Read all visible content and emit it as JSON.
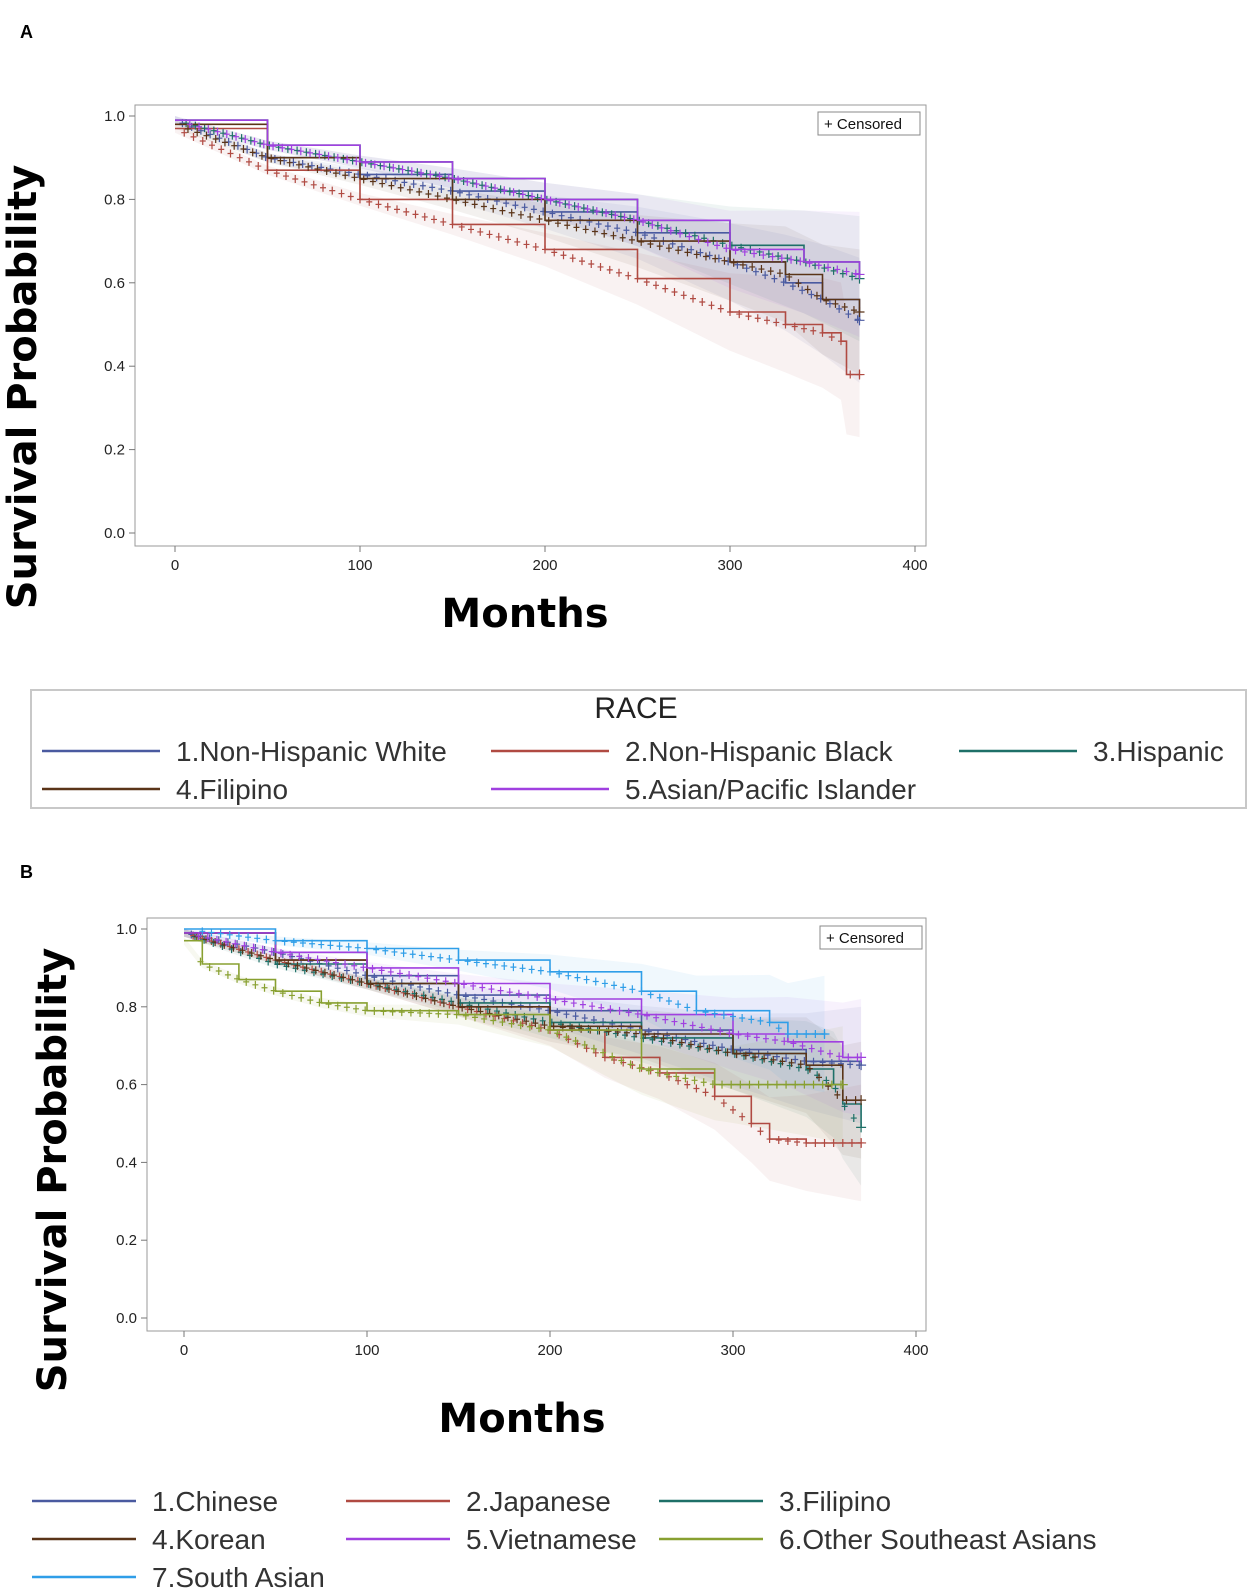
{
  "chart_data": [
    {
      "panel": "A",
      "type": "line",
      "subtype": "kaplan-meier",
      "xlabel": "Months",
      "ylabel": "Survival Probability",
      "xlim": [
        0,
        400
      ],
      "ylim": [
        0,
        1
      ],
      "xticks": [
        "0",
        "100",
        "200",
        "300",
        "400"
      ],
      "yticks": [
        "0.0",
        "0.2",
        "0.4",
        "0.6",
        "0.8",
        "1.0"
      ],
      "censored_label": "+ Censored",
      "legend_title": "RACE",
      "series": [
        {
          "name": "1.Non-Hispanic White",
          "color": "#4a5aa0",
          "x": [
            0,
            50,
            100,
            150,
            200,
            250,
            300,
            330,
            350,
            370
          ],
          "y": [
            0.99,
            0.9,
            0.86,
            0.82,
            0.77,
            0.72,
            0.65,
            0.6,
            0.56,
            0.51
          ]
        },
        {
          "name": "2.Non-Hispanic Black",
          "color": "#b04a42",
          "x": [
            0,
            50,
            100,
            150,
            200,
            250,
            300,
            330,
            350,
            360,
            363,
            370
          ],
          "y": [
            0.97,
            0.87,
            0.8,
            0.74,
            0.68,
            0.61,
            0.53,
            0.5,
            0.48,
            0.46,
            0.38,
            0.38
          ]
        },
        {
          "name": "3.Hispanic",
          "color": "#1e7068",
          "x": [
            0,
            50,
            100,
            150,
            200,
            250,
            300,
            340,
            370
          ],
          "y": [
            0.99,
            0.93,
            0.89,
            0.85,
            0.8,
            0.75,
            0.69,
            0.65,
            0.61
          ]
        },
        {
          "name": "4.Filipino",
          "color": "#5a3418",
          "x": [
            0,
            50,
            100,
            150,
            200,
            250,
            300,
            330,
            350,
            370
          ],
          "y": [
            0.98,
            0.9,
            0.85,
            0.8,
            0.75,
            0.7,
            0.65,
            0.62,
            0.56,
            0.53
          ]
        },
        {
          "name": "5.Asian/Pacific Islander",
          "color": "#a040e0",
          "x": [
            0,
            50,
            100,
            150,
            200,
            250,
            300,
            340,
            370
          ],
          "y": [
            0.99,
            0.93,
            0.89,
            0.85,
            0.8,
            0.75,
            0.68,
            0.65,
            0.62
          ]
        }
      ]
    },
    {
      "panel": "B",
      "type": "line",
      "subtype": "kaplan-meier",
      "xlabel": "Months",
      "ylabel": "Survival Probability",
      "xlim": [
        0,
        400
      ],
      "ylim": [
        0,
        1
      ],
      "xticks": [
        "0",
        "100",
        "200",
        "300",
        "400"
      ],
      "yticks": [
        "0.0",
        "0.2",
        "0.4",
        "0.6",
        "0.8",
        "1.0"
      ],
      "censored_label": "+ Censored",
      "series": [
        {
          "name": "1.Chinese",
          "color": "#4a5aa0",
          "x": [
            0,
            50,
            100,
            150,
            200,
            250,
            300,
            340,
            370
          ],
          "y": [
            0.99,
            0.94,
            0.88,
            0.83,
            0.79,
            0.74,
            0.69,
            0.66,
            0.65
          ]
        },
        {
          "name": "2.Japanese",
          "color": "#b04a42",
          "x": [
            0,
            50,
            100,
            150,
            200,
            230,
            260,
            290,
            310,
            320,
            340,
            370
          ],
          "y": [
            0.99,
            0.92,
            0.86,
            0.8,
            0.74,
            0.67,
            0.63,
            0.57,
            0.5,
            0.46,
            0.45,
            0.45
          ]
        },
        {
          "name": "3.Filipino",
          "color": "#1e7068",
          "x": [
            0,
            50,
            100,
            150,
            200,
            250,
            300,
            340,
            355,
            360,
            370
          ],
          "y": [
            0.99,
            0.91,
            0.86,
            0.81,
            0.76,
            0.72,
            0.68,
            0.64,
            0.6,
            0.55,
            0.49
          ]
        },
        {
          "name": "4.Korean",
          "color": "#5a3418",
          "x": [
            0,
            50,
            100,
            150,
            200,
            250,
            300,
            340,
            360,
            370
          ],
          "y": [
            0.99,
            0.92,
            0.86,
            0.8,
            0.75,
            0.73,
            0.68,
            0.65,
            0.56,
            0.56
          ]
        },
        {
          "name": "5.Vietnamese",
          "color": "#a040e0",
          "x": [
            0,
            50,
            100,
            150,
            200,
            250,
            300,
            330,
            360,
            370
          ],
          "y": [
            0.99,
            0.94,
            0.9,
            0.86,
            0.82,
            0.78,
            0.73,
            0.71,
            0.67,
            0.67
          ]
        },
        {
          "name": "6.Other Southeast Asians",
          "color": "#88a030",
          "x": [
            0,
            10,
            30,
            50,
            75,
            100,
            150,
            200,
            250,
            290,
            300,
            340,
            360
          ],
          "y": [
            0.97,
            0.91,
            0.87,
            0.84,
            0.81,
            0.79,
            0.78,
            0.74,
            0.64,
            0.6,
            0.6,
            0.6,
            0.6
          ]
        },
        {
          "name": "7.South Asian",
          "color": "#2f9ee8",
          "x": [
            0,
            50,
            100,
            150,
            200,
            250,
            280,
            320,
            330,
            350
          ],
          "y": [
            1.0,
            0.97,
            0.95,
            0.92,
            0.89,
            0.84,
            0.79,
            0.76,
            0.73,
            0.73
          ]
        }
      ]
    }
  ]
}
